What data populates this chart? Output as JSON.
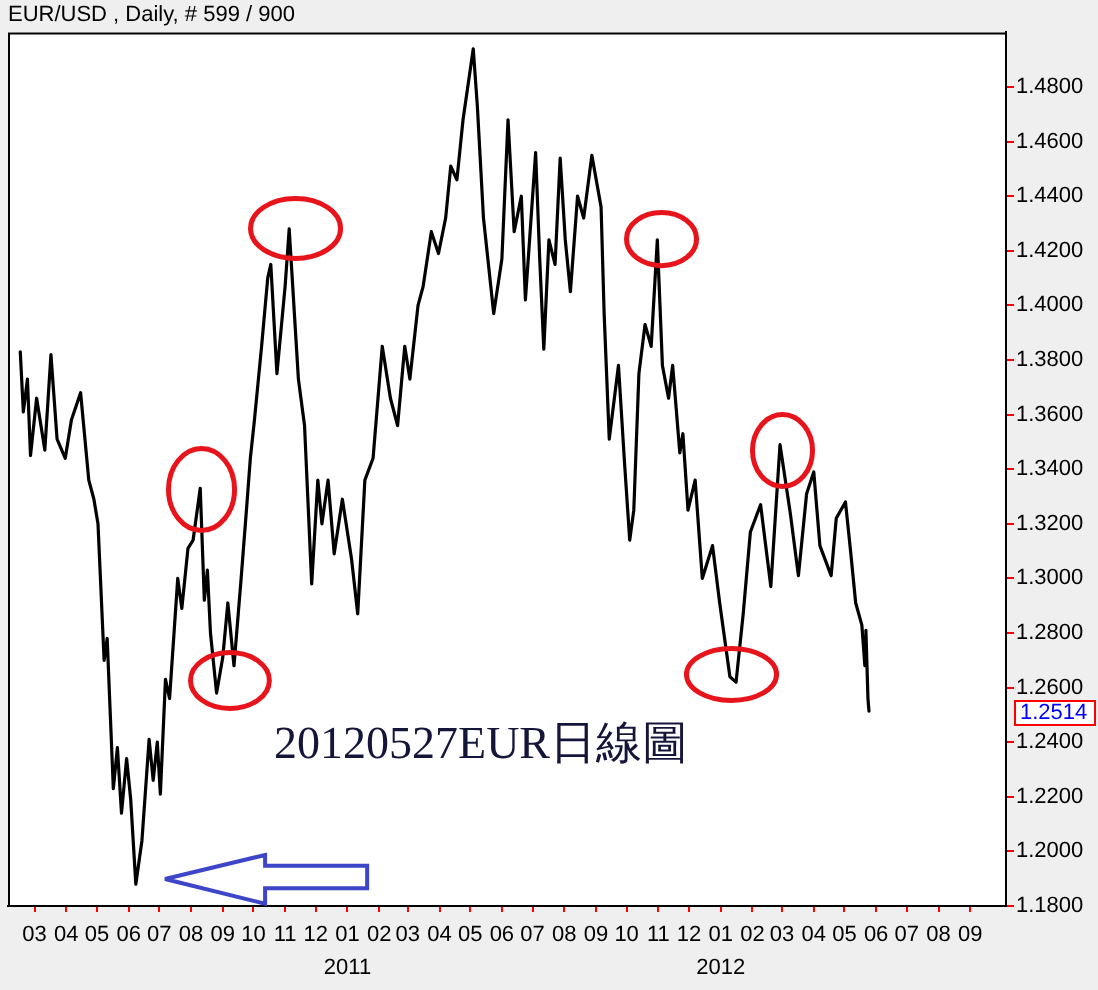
{
  "chart_data": {
    "type": "line",
    "title": "EUR/USD , Daily, # 599 / 900",
    "color": "#000000",
    "x": [
      "2010-02-15",
      "2010-02-18",
      "2010-02-22",
      "2010-02-25",
      "2010-03-03",
      "2010-03-11",
      "2010-03-17",
      "2010-03-23",
      "2010-03-31",
      "2010-04-06",
      "2010-04-15",
      "2010-04-23",
      "2010-04-28",
      "2010-05-02",
      "2010-05-08",
      "2010-05-11",
      "2010-05-17",
      "2010-05-21",
      "2010-05-25",
      "2010-05-30",
      "2010-06-03",
      "2010-06-08",
      "2010-06-14",
      "2010-06-21",
      "2010-06-25",
      "2010-06-29",
      "2010-07-02",
      "2010-07-07",
      "2010-07-11",
      "2010-07-19",
      "2010-07-23",
      "2010-07-29",
      "2010-08-03",
      "2010-08-10",
      "2010-08-14",
      "2010-08-17",
      "2010-08-20",
      "2010-08-26",
      "2010-09-01",
      "2010-09-06",
      "2010-09-12",
      "2010-09-19",
      "2010-09-25",
      "2010-09-28",
      "2010-10-02",
      "2010-10-09",
      "2010-10-15",
      "2010-10-18",
      "2010-10-24",
      "2010-11-01",
      "2010-11-05",
      "2010-11-14",
      "2010-11-20",
      "2010-11-27",
      "2010-12-03",
      "2010-12-07",
      "2010-12-13",
      "2010-12-19",
      "2010-12-27",
      "2011-01-05",
      "2011-01-11",
      "2011-01-18",
      "2011-01-26",
      "2011-02-04",
      "2011-02-12",
      "2011-02-19",
      "2011-02-26",
      "2011-03-03",
      "2011-03-11",
      "2011-03-16",
      "2011-03-24",
      "2011-03-31",
      "2011-04-07",
      "2011-04-12",
      "2011-04-18",
      "2011-04-24",
      "2011-05-04",
      "2011-05-08",
      "2011-05-14",
      "2011-05-24",
      "2011-06-01",
      "2011-06-07",
      "2011-06-13",
      "2011-06-20",
      "2011-06-24",
      "2011-07-04",
      "2011-07-08",
      "2011-07-12",
      "2011-07-17",
      "2011-07-23",
      "2011-07-28",
      "2011-08-02",
      "2011-08-07",
      "2011-08-14",
      "2011-08-20",
      "2011-08-28",
      "2011-09-06",
      "2011-09-09",
      "2011-09-14",
      "2011-09-23",
      "2011-09-29",
      "2011-10-04",
      "2011-10-08",
      "2011-10-13",
      "2011-10-19",
      "2011-10-25",
      "2011-10-31",
      "2011-11-05",
      "2011-11-11",
      "2011-11-15",
      "2011-11-22",
      "2011-11-25",
      "2011-11-30",
      "2011-12-07",
      "2011-12-14",
      "2011-12-24",
      "2011-12-31",
      "2012-01-10",
      "2012-01-16",
      "2012-01-23",
      "2012-01-30",
      "2012-02-09",
      "2012-02-19",
      "2012-02-28",
      "2012-03-09",
      "2012-03-17",
      "2012-03-25",
      "2012-04-01",
      "2012-04-07",
      "2012-04-18",
      "2012-04-23",
      "2012-05-02",
      "2012-05-07",
      "2012-05-12",
      "2012-05-18",
      "2012-05-21",
      "2012-05-22",
      "2012-05-24",
      "2012-05-25"
    ],
    "values": [
      1.383,
      1.361,
      1.373,
      1.345,
      1.366,
      1.347,
      1.382,
      1.351,
      1.344,
      1.358,
      1.368,
      1.336,
      1.329,
      1.32,
      1.27,
      1.278,
      1.223,
      1.238,
      1.214,
      1.234,
      1.219,
      1.188,
      1.204,
      1.241,
      1.226,
      1.24,
      1.221,
      1.263,
      1.256,
      1.3,
      1.289,
      1.311,
      1.314,
      1.333,
      1.292,
      1.303,
      1.28,
      1.258,
      1.271,
      1.291,
      1.268,
      1.3,
      1.329,
      1.344,
      1.358,
      1.385,
      1.41,
      1.415,
      1.375,
      1.407,
      1.428,
      1.373,
      1.356,
      1.298,
      1.336,
      1.32,
      1.336,
      1.309,
      1.329,
      1.307,
      1.287,
      1.336,
      1.344,
      1.385,
      1.366,
      1.356,
      1.385,
      1.373,
      1.4,
      1.407,
      1.427,
      1.419,
      1.432,
      1.451,
      1.446,
      1.468,
      1.494,
      1.473,
      1.432,
      1.397,
      1.417,
      1.468,
      1.427,
      1.44,
      1.402,
      1.456,
      1.417,
      1.384,
      1.424,
      1.415,
      1.454,
      1.424,
      1.405,
      1.44,
      1.432,
      1.455,
      1.436,
      1.397,
      1.351,
      1.378,
      1.342,
      1.314,
      1.325,
      1.375,
      1.393,
      1.385,
      1.424,
      1.378,
      1.366,
      1.378,
      1.346,
      1.353,
      1.325,
      1.336,
      1.3,
      1.312,
      1.291,
      1.264,
      1.262,
      1.287,
      1.317,
      1.327,
      1.297,
      1.349,
      1.324,
      1.301,
      1.331,
      1.339,
      1.312,
      1.301,
      1.322,
      1.328,
      1.31,
      1.291,
      1.283,
      1.268,
      1.281,
      1.256,
      1.2514
    ],
    "xlim": [
      "2010-02-03",
      "2012-10-06"
    ],
    "xticks": [
      {
        "value": "2010-03-01",
        "label": "03"
      },
      {
        "value": "2010-04-01",
        "label": "04"
      },
      {
        "value": "2010-05-01",
        "label": "05"
      },
      {
        "value": "2010-06-01",
        "label": "06"
      },
      {
        "value": "2010-07-01",
        "label": "07"
      },
      {
        "value": "2010-08-01",
        "label": "08"
      },
      {
        "value": "2010-09-01",
        "label": "09"
      },
      {
        "value": "2010-10-01",
        "label": "10"
      },
      {
        "value": "2010-11-01",
        "label": "11"
      },
      {
        "value": "2010-12-01",
        "label": "12"
      },
      {
        "value": "2011-01-01",
        "label": "01\n2011"
      },
      {
        "value": "2011-02-01",
        "label": "02"
      },
      {
        "value": "2011-03-01",
        "label": "03"
      },
      {
        "value": "2011-04-01",
        "label": "04"
      },
      {
        "value": "2011-05-01",
        "label": "05"
      },
      {
        "value": "2011-06-01",
        "label": "06"
      },
      {
        "value": "2011-07-01",
        "label": "07"
      },
      {
        "value": "2011-08-01",
        "label": "08"
      },
      {
        "value": "2011-09-01",
        "label": "09"
      },
      {
        "value": "2011-10-01",
        "label": "10"
      },
      {
        "value": "2011-11-01",
        "label": "11"
      },
      {
        "value": "2011-12-01",
        "label": "12"
      },
      {
        "value": "2012-01-01",
        "label": "01\n2012"
      },
      {
        "value": "2012-02-01",
        "label": "02"
      },
      {
        "value": "2012-03-01",
        "label": "03"
      },
      {
        "value": "2012-04-01",
        "label": "04"
      },
      {
        "value": "2012-05-01",
        "label": "05"
      },
      {
        "value": "2012-06-01",
        "label": "06"
      },
      {
        "value": "2012-07-01",
        "label": "07"
      },
      {
        "value": "2012-08-01",
        "label": "08"
      },
      {
        "value": "2012-09-01",
        "label": "09"
      }
    ],
    "ylim": [
      1.18,
      1.5
    ],
    "yticks": [
      {
        "value": 1.18,
        "label": "1.1800"
      },
      {
        "value": 1.2,
        "label": "1.2000"
      },
      {
        "value": 1.22,
        "label": "1.2200"
      },
      {
        "value": 1.24,
        "label": "1.2400"
      },
      {
        "value": 1.26,
        "label": "1.2600"
      },
      {
        "value": 1.28,
        "label": "1.2800"
      },
      {
        "value": 1.3,
        "label": "1.3000"
      },
      {
        "value": 1.32,
        "label": "1.3200"
      },
      {
        "value": 1.34,
        "label": "1.3400"
      },
      {
        "value": 1.36,
        "label": "1.3600"
      },
      {
        "value": 1.38,
        "label": "1.3800"
      },
      {
        "value": 1.4,
        "label": "1.4000"
      },
      {
        "value": 1.42,
        "label": "1.4200"
      },
      {
        "value": 1.44,
        "label": "1.4400"
      },
      {
        "value": 1.46,
        "label": "1.4600"
      },
      {
        "value": 1.48,
        "label": "1.4800"
      }
    ],
    "annotations": [
      "20120527EUR日線圖",
      "1.2514"
    ]
  }
}
